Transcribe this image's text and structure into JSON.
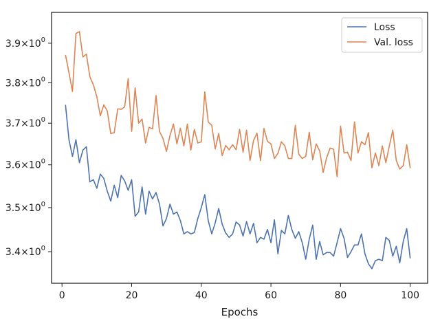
{
  "chart_data": {
    "type": "line",
    "title": "",
    "xlabel": "Epochs",
    "ylabel": "",
    "xlim": [
      -3,
      105
    ],
    "ylim": [
      3.33,
      3.98
    ],
    "yscale": "log",
    "x_ticks": [
      0,
      20,
      40,
      60,
      80,
      100
    ],
    "x_tick_labels": [
      "0",
      "20",
      "40",
      "60",
      "80",
      "100"
    ],
    "y_ticks": [
      3.4,
      3.5,
      3.6,
      3.7,
      3.8,
      3.9
    ],
    "y_tick_labels": [
      {
        "base": "3.4",
        "mult": "×10",
        "exp": "0"
      },
      {
        "base": "3.5",
        "mult": "×10",
        "exp": "0"
      },
      {
        "base": "3.6",
        "mult": "×10",
        "exp": "0"
      },
      {
        "base": "3.7",
        "mult": "×10",
        "exp": "0"
      },
      {
        "base": "3.8",
        "mult": "×10",
        "exp": "0"
      },
      {
        "base": "3.9",
        "mult": "×10",
        "exp": "0"
      }
    ],
    "grid": false,
    "legend_position": "top-right",
    "x_start": 1,
    "series": [
      {
        "name": "Loss",
        "color": "#4c72b0",
        "values": [
          3.745,
          3.66,
          3.62,
          3.66,
          3.605,
          3.635,
          3.643,
          3.56,
          3.565,
          3.545,
          3.578,
          3.568,
          3.538,
          3.515,
          3.552,
          3.523,
          3.575,
          3.562,
          3.54,
          3.565,
          3.48,
          3.49,
          3.548,
          3.485,
          3.538,
          3.52,
          3.535,
          3.508,
          3.458,
          3.475,
          3.508,
          3.485,
          3.49,
          3.47,
          3.44,
          3.445,
          3.44,
          3.443,
          3.475,
          3.5,
          3.53,
          3.47,
          3.44,
          3.465,
          3.498,
          3.462,
          3.442,
          3.432,
          3.44,
          3.467,
          3.46,
          3.435,
          3.468,
          3.44,
          3.464,
          3.42,
          3.432,
          3.428,
          3.45,
          3.42,
          3.472,
          3.395,
          3.448,
          3.44,
          3.482,
          3.45,
          3.43,
          3.445,
          3.42,
          3.383,
          3.428,
          3.46,
          3.383,
          3.423,
          3.393,
          3.398,
          3.398,
          3.39,
          3.42,
          3.452,
          3.43,
          3.387,
          3.4,
          3.415,
          3.415,
          3.44,
          3.395,
          3.373,
          3.362,
          3.38,
          3.383,
          3.38,
          3.432,
          3.425,
          3.39,
          3.412,
          3.375,
          3.423,
          3.452,
          3.385
        ]
      },
      {
        "name": "Val. loss",
        "color": "#dd8452",
        "values": [
          3.87,
          3.825,
          3.778,
          3.925,
          3.93,
          3.865,
          3.872,
          3.815,
          3.795,
          3.765,
          3.718,
          3.745,
          3.73,
          3.675,
          3.677,
          3.735,
          3.734,
          3.74,
          3.81,
          3.68,
          3.787,
          3.7,
          3.71,
          3.652,
          3.69,
          3.686,
          3.768,
          3.68,
          3.663,
          3.632,
          3.67,
          3.698,
          3.65,
          3.688,
          3.645,
          3.698,
          3.635,
          3.685,
          3.652,
          3.655,
          3.777,
          3.703,
          3.695,
          3.638,
          3.675,
          3.622,
          3.646,
          3.636,
          3.648,
          3.636,
          3.685,
          3.63,
          3.683,
          3.61,
          3.658,
          3.676,
          3.61,
          3.687,
          3.656,
          3.65,
          3.615,
          3.627,
          3.655,
          3.645,
          3.615,
          3.615,
          3.695,
          3.625,
          3.615,
          3.62,
          3.678,
          3.612,
          3.65,
          3.633,
          3.582,
          3.617,
          3.64,
          3.637,
          3.572,
          3.693,
          3.628,
          3.63,
          3.61,
          3.703,
          3.628,
          3.655,
          3.648,
          3.677,
          3.593,
          3.628,
          3.598,
          3.645,
          3.605,
          3.645,
          3.683,
          3.61,
          3.59,
          3.598,
          3.648,
          3.592
        ]
      }
    ]
  }
}
